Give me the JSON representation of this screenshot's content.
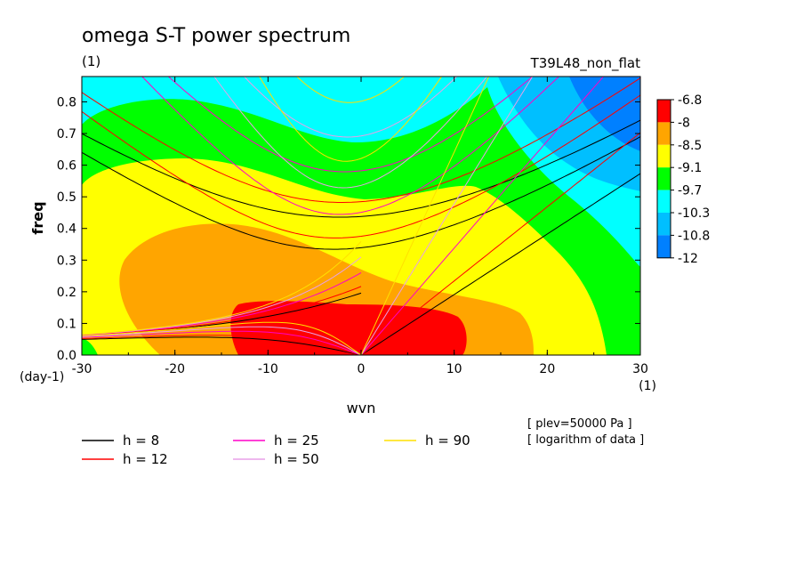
{
  "chart_data": {
    "type": "heatmap",
    "title": "omega S-T power spectrum",
    "units_label": "(1)",
    "run_label": "T39L48_non_flat",
    "xlabel": "wvn",
    "x_units": "(1)",
    "ylabel": "freq",
    "y_units": "(day-1)",
    "xlim": [
      -30,
      30
    ],
    "ylim": [
      0,
      0.88
    ],
    "x_ticks": [
      -30,
      -20,
      -10,
      0,
      10,
      20,
      30
    ],
    "x_tick_labels": [
      "-30",
      "-20",
      "-10",
      "0",
      "10",
      "20",
      "30"
    ],
    "y_ticks": [
      0,
      0.1,
      0.2,
      0.3,
      0.4,
      0.5,
      0.6,
      0.7,
      0.8
    ],
    "y_tick_labels": [
      "0.0",
      "0.1",
      "0.2",
      "0.3",
      "0.4",
      "0.5",
      "0.6",
      "0.7",
      "0.8"
    ],
    "colorbar": {
      "levels": [
        "-6.8",
        "-8",
        "-8.5",
        "-9.1",
        "-9.7",
        "-10.3",
        "-10.8",
        "-12"
      ],
      "colors": [
        "#ff0000",
        "#ffa500",
        "#ffff00",
        "#00ff00",
        "#00ffff",
        "#00bfff",
        "#0080ff",
        "#0050ff"
      ]
    },
    "contour_bands": [
      {
        "name": "band-cyan",
        "color": "#00ffff",
        "level": "-10.3"
      },
      {
        "name": "band-green",
        "color": "#00ff00",
        "level": "-9.7"
      },
      {
        "name": "band-yellow",
        "color": "#ffff00",
        "level": "-9.1"
      },
      {
        "name": "band-orange",
        "color": "#ffa500",
        "level": "-8.5"
      },
      {
        "name": "band-red",
        "color": "#ff0000",
        "level": "-6.8"
      },
      {
        "name": "band-skyblue",
        "color": "#00bfff",
        "level": "-10.8"
      },
      {
        "name": "band-blue",
        "color": "#0080ff",
        "level": "-12"
      }
    ],
    "dispersion_curves": [
      {
        "label": "h =  8",
        "h": 8,
        "color": "#000000"
      },
      {
        "label": "h = 12",
        "h": 12,
        "color": "#ff0000"
      },
      {
        "label": "h = 25",
        "h": 25,
        "color": "#ff00c8"
      },
      {
        "label": "h = 50",
        "h": 50,
        "color": "#e8a0e8"
      },
      {
        "label": "h = 90",
        "h": 90,
        "color": "#ffe000"
      }
    ],
    "annotations": [
      "[ plev=50000 Pa ]",
      "[ logarithm of data ]"
    ]
  }
}
